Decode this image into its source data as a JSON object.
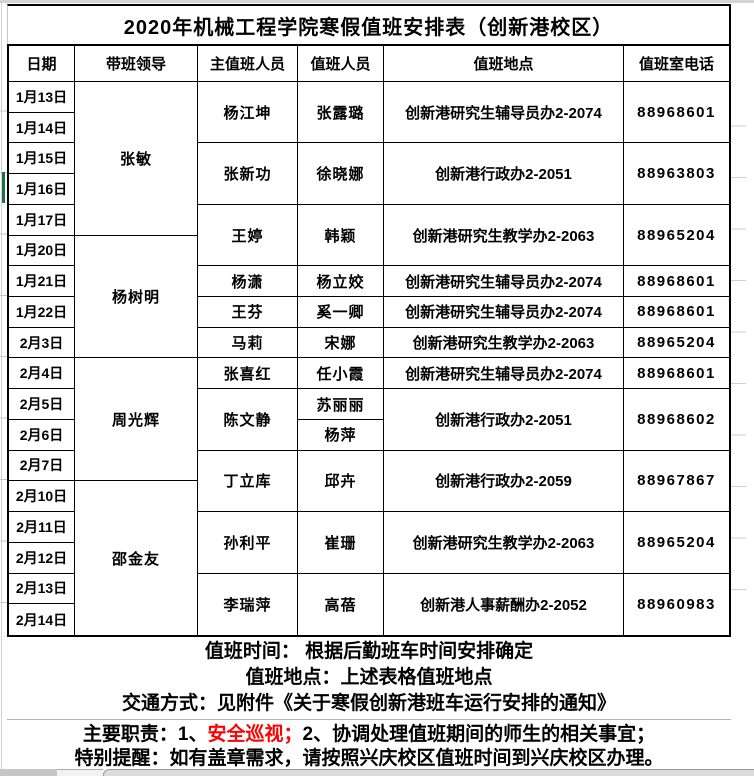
{
  "title": "2020年机械工程学院寒假值班安排表（创新港校区）",
  "columns": [
    "日期",
    "带班领导",
    "主值班人员",
    "值班人员",
    "值班地点",
    "值班室电话"
  ],
  "dates": [
    "1月13日",
    "1月14日",
    "1月15日",
    "1月16日",
    "1月17日",
    "1月20日",
    "1月21日",
    "1月22日",
    "2月3日",
    "2月4日",
    "2月5日",
    "2月6日",
    "2月7日",
    "2月10日",
    "2月11日",
    "2月12日",
    "2月13日",
    "2月14日"
  ],
  "selected_date": "1月16日",
  "leaders": [
    {
      "name": "张敏"
    },
    {
      "name": "杨树明"
    },
    {
      "name": "周光辉"
    },
    {
      "name": "邵金友"
    }
  ],
  "groups": [
    {
      "main": "杨江坤",
      "duty": [
        "张露璐"
      ],
      "location": "创新港研究生辅导员办2-2074",
      "phone": "88968601"
    },
    {
      "main": "张新功",
      "duty": [
        "徐晓娜"
      ],
      "location": "创新港行政办2-2051",
      "phone": "88963803"
    },
    {
      "main": "王婷",
      "duty": [
        "韩颖"
      ],
      "location": "创新港研究生教学办2-2063",
      "phone": "88965204"
    },
    {
      "main": "杨潇",
      "duty": [
        "杨立姣"
      ],
      "location": "创新港研究生辅导员办2-2074",
      "phone": "88968601"
    },
    {
      "main": "王芬",
      "duty": [
        "奚一卿"
      ],
      "location": "创新港研究生辅导员办2-2074",
      "phone": "88968601"
    },
    {
      "main": "马莉",
      "duty": [
        "宋娜"
      ],
      "location": "创新港研究生教学办2-2063",
      "phone": "88965204"
    },
    {
      "main": "张喜红",
      "duty": [
        "任小霞"
      ],
      "location": "创新港研究生辅导员办2-2074",
      "phone": "88968601"
    },
    {
      "main": "陈文静",
      "duty": [
        "苏丽丽",
        "杨萍"
      ],
      "location": "创新港行政办2-2051",
      "phone": "88968602"
    },
    {
      "main": "丁立库",
      "duty": [
        "邱卉"
      ],
      "location": "创新港行政办2-2059",
      "phone": "88967867"
    },
    {
      "main": "孙利平",
      "duty": [
        "崔珊"
      ],
      "location": "创新港研究生教学办2-2063",
      "phone": "88965204"
    },
    {
      "main": "李瑞萍",
      "duty": [
        "高蓓"
      ],
      "location": "创新港人事薪酬办2-2052",
      "phone": "88960983"
    }
  ],
  "notes": {
    "time": "值班时间：  根据后勤班车时间安排确定",
    "place": "值班地点：上述表格值班地点",
    "transport": "交通方式：见附件《关于寒假创新港班车运行安排的通知》"
  },
  "footer": {
    "duties_prefix": "主要职责：1、",
    "duties_highlight": "安全巡视；",
    "duties_suffix": "2、协调处理值班期间的师生的相关事宜；",
    "reminder": "特别提醒：如有盖章需求，请按照兴庆校区值班时间到兴庆校区办理。"
  },
  "colors": {
    "highlight_red": "#ff0000",
    "selection_green": "#1e7145",
    "border_black": "#000000",
    "grid_gray": "#c9c9c9"
  }
}
